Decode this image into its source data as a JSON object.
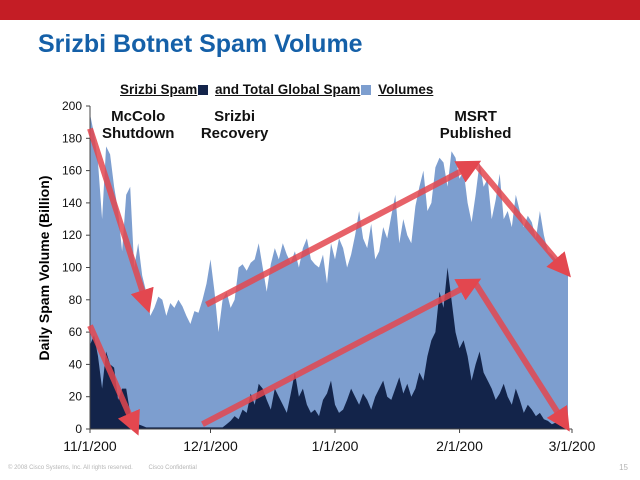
{
  "slide": {
    "title": "Srizbi Botnet Spam Volume",
    "copyright": "© 2008 Cisco Systems, Inc. All rights reserved.",
    "confidential": "Cisco Confidential",
    "page_number": "15"
  },
  "colors": {
    "top_bar": "#c41d25",
    "title": "#1560a8",
    "srizbi_area": "#13244a",
    "global_area": "#7d9ecf",
    "arrows": "#e3474f"
  },
  "chart_data": {
    "type": "area",
    "title_parts": [
      "Srizbi Spam",
      "and Total Global Spam",
      "Volumes"
    ],
    "ylabel": "Daily Spam Volume (Billion)",
    "xlabel": "",
    "ylim": [
      0,
      200
    ],
    "yticks": [
      "0",
      "20",
      "40",
      "60",
      "80",
      "100",
      "120",
      "140",
      "160",
      "180",
      "200"
    ],
    "xticks": [
      "11/1/200",
      "12/1/200",
      "1/1/200",
      "2/1/200",
      "3/1/200"
    ],
    "grid": false,
    "legend": "inline in title",
    "annotations": [
      {
        "lines": [
          "McColo",
          "Shutdown"
        ],
        "day": 12
      },
      {
        "lines": [
          "Srizbi",
          "Recovery"
        ],
        "day": 36
      },
      {
        "lines": [
          "MSRT",
          "Published"
        ],
        "day": 96
      }
    ],
    "series": [
      {
        "name": "Total Global Spam",
        "day": [
          0,
          1,
          2,
          3,
          4,
          5,
          6,
          7,
          8,
          9,
          10,
          11,
          12,
          13,
          14,
          15,
          16,
          17,
          18,
          19,
          20,
          21,
          22,
          23,
          24,
          25,
          26,
          27,
          28,
          29,
          30,
          31,
          32,
          33,
          34,
          35,
          36,
          37,
          38,
          39,
          40,
          41,
          42,
          43,
          44,
          45,
          46,
          47,
          48,
          49,
          50,
          51,
          52,
          53,
          54,
          55,
          56,
          57,
          58,
          59,
          60,
          61,
          62,
          63,
          64,
          65,
          66,
          67,
          68,
          69,
          70,
          71,
          72,
          73,
          74,
          75,
          76,
          77,
          78,
          79,
          80,
          81,
          82,
          83,
          84,
          85,
          86,
          87,
          88,
          89,
          90,
          91,
          92,
          93,
          94,
          95,
          96,
          97,
          98,
          99,
          100,
          101,
          102,
          103,
          104,
          105,
          106,
          107,
          108,
          109,
          110,
          111,
          112,
          113,
          114,
          115,
          116,
          117,
          118,
          119
        ],
        "values": [
          195,
          183,
          165,
          130,
          175,
          170,
          150,
          135,
          110,
          145,
          150,
          100,
          115,
          95,
          85,
          70,
          75,
          82,
          80,
          70,
          78,
          75,
          80,
          76,
          70,
          65,
          73,
          72,
          80,
          90,
          105,
          85,
          60,
          80,
          85,
          75,
          80,
          100,
          102,
          98,
          103,
          105,
          115,
          100,
          85,
          102,
          112,
          105,
          115,
          108,
          103,
          110,
          100,
          112,
          118,
          105,
          102,
          100,
          108,
          90,
          115,
          105,
          118,
          112,
          100,
          108,
          120,
          135,
          118,
          112,
          127,
          105,
          110,
          125,
          118,
          132,
          145,
          115,
          130,
          120,
          115,
          138,
          150,
          160,
          135,
          140,
          162,
          168,
          165,
          150,
          172,
          168,
          155,
          160,
          140,
          128,
          145,
          165,
          150,
          155,
          130,
          142,
          158,
          130,
          135,
          125,
          145,
          135,
          125,
          132,
          128,
          118,
          135,
          120,
          110,
          108,
          105,
          102,
          100,
          95
        ]
      },
      {
        "name": "Srizbi Spam",
        "day": [
          0,
          1,
          2,
          3,
          4,
          5,
          6,
          7,
          8,
          9,
          10,
          11,
          12,
          13,
          14,
          15,
          16,
          17,
          18,
          19,
          20,
          21,
          22,
          23,
          24,
          25,
          26,
          27,
          28,
          29,
          30,
          31,
          32,
          33,
          34,
          35,
          36,
          37,
          38,
          39,
          40,
          41,
          42,
          43,
          44,
          45,
          46,
          47,
          48,
          49,
          50,
          51,
          52,
          53,
          54,
          55,
          56,
          57,
          58,
          59,
          60,
          61,
          62,
          63,
          64,
          65,
          66,
          67,
          68,
          69,
          70,
          71,
          72,
          73,
          74,
          75,
          76,
          77,
          78,
          79,
          80,
          81,
          82,
          83,
          84,
          85,
          86,
          87,
          88,
          89,
          90,
          91,
          92,
          93,
          94,
          95,
          96,
          97,
          98,
          99,
          100,
          101,
          102,
          103,
          104,
          105,
          106,
          107,
          108,
          109,
          110,
          111,
          112,
          113,
          114,
          115,
          116,
          117,
          118,
          119
        ],
        "values": [
          52,
          58,
          45,
          25,
          48,
          40,
          38,
          18,
          25,
          25,
          10,
          5,
          3,
          2,
          1,
          1,
          1,
          1,
          1,
          1,
          1,
          1,
          1,
          1,
          1,
          1,
          1,
          1,
          1,
          1,
          1,
          1,
          1,
          1,
          3,
          5,
          8,
          6,
          12,
          10,
          22,
          15,
          28,
          25,
          18,
          12,
          25,
          20,
          15,
          10,
          22,
          35,
          20,
          25,
          15,
          10,
          12,
          8,
          18,
          22,
          30,
          15,
          10,
          12,
          18,
          25,
          20,
          15,
          22,
          18,
          12,
          20,
          25,
          30,
          20,
          18,
          25,
          32,
          22,
          28,
          20,
          25,
          35,
          30,
          45,
          55,
          60,
          85,
          75,
          100,
          80,
          60,
          50,
          55,
          45,
          30,
          40,
          48,
          35,
          30,
          25,
          18,
          22,
          28,
          20,
          15,
          25,
          18,
          10,
          15,
          12,
          8,
          10,
          6,
          5,
          3,
          4,
          2,
          3,
          2
        ]
      }
    ]
  }
}
